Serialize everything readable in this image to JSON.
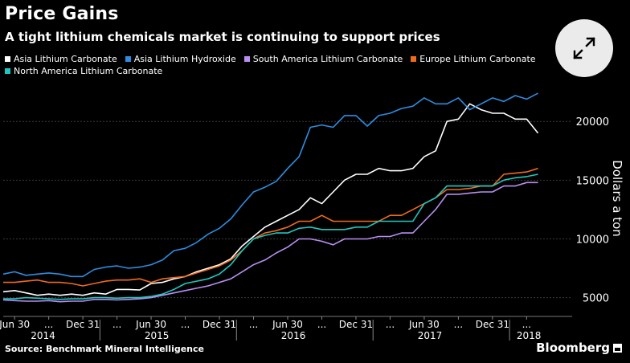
{
  "chart_data": {
    "type": "line",
    "title": "Price Gains",
    "subtitle": "A tight lithium chemicals market is continuing to support prices",
    "ylabel": "Dollars a ton",
    "ylim": [
      3400,
      23500
    ],
    "yticks": [
      5000,
      10000,
      15000,
      20000
    ],
    "ytick_labels": [
      "5000",
      "10000",
      "15000",
      "20000"
    ],
    "x": [
      0,
      1,
      2,
      3,
      4,
      5,
      6,
      7,
      8,
      9,
      10,
      11,
      12,
      13,
      14,
      15,
      16,
      17,
      18,
      19,
      20,
      21,
      22,
      23,
      24,
      25,
      26,
      27,
      28,
      29,
      30,
      31,
      32,
      33,
      34,
      35,
      36,
      37,
      38,
      39,
      40,
      41,
      42,
      43,
      44,
      45,
      46,
      47
    ],
    "xlim": [
      0,
      50
    ],
    "xtick_labels": [
      {
        "x": 1,
        "label": "Jun 30"
      },
      {
        "x": 4,
        "label": "..."
      },
      {
        "x": 7,
        "label": "Dec 31"
      },
      {
        "x": 10,
        "label": "..."
      },
      {
        "x": 13,
        "label": "Jun 30"
      },
      {
        "x": 16,
        "label": "..."
      },
      {
        "x": 19,
        "label": "Dec 31"
      },
      {
        "x": 22,
        "label": "..."
      },
      {
        "x": 25,
        "label": "Jun 30"
      },
      {
        "x": 28,
        "label": "..."
      },
      {
        "x": 31,
        "label": "Dec 31"
      },
      {
        "x": 34,
        "label": "..."
      },
      {
        "x": 37,
        "label": "Jun 30"
      },
      {
        "x": 40,
        "label": "..."
      },
      {
        "x": 43,
        "label": "Dec 31"
      },
      {
        "x": 46,
        "label": "..."
      }
    ],
    "years": [
      {
        "x": 3.5,
        "label": "2014"
      },
      {
        "x": 13.5,
        "label": "2015"
      },
      {
        "x": 25.5,
        "label": "2016"
      },
      {
        "x": 37.5,
        "label": "2017"
      },
      {
        "x": 46.2,
        "label": "2018"
      }
    ],
    "year_dividers": [
      8.5,
      20.5,
      32.5,
      44.5
    ],
    "series": [
      {
        "name": "Asia Lithium Carbonate",
        "color": "#ffffff",
        "values": [
          5500,
          5600,
          5400,
          5200,
          5300,
          5200,
          5300,
          5200,
          5400,
          5300,
          5700,
          5700,
          5650,
          6200,
          6300,
          6600,
          6800,
          7200,
          7500,
          7800,
          8300,
          9400,
          10200,
          11000,
          11500,
          12000,
          12500,
          13500,
          13000,
          14000,
          15000,
          15500,
          15500,
          16000,
          15800,
          15800,
          16000,
          17000,
          17500,
          20000,
          20200,
          21500,
          21000,
          20700,
          20700,
          20200,
          20200,
          19000
        ]
      },
      {
        "name": "Asia Lithium Hydroxide",
        "color": "#2e8de0",
        "values": [
          7000,
          7200,
          6900,
          7000,
          7100,
          7000,
          6800,
          6800,
          7400,
          7600,
          7700,
          7500,
          7600,
          7800,
          8200,
          9000,
          9200,
          9700,
          10400,
          10900,
          11700,
          12900,
          14000,
          14400,
          14900,
          16000,
          17000,
          19500,
          19700,
          19500,
          20500,
          20500,
          19600,
          20500,
          20700,
          21100,
          21300,
          22000,
          21500,
          21500,
          22000,
          21000,
          21500,
          22000,
          21700,
          22200,
          21900,
          22400
        ]
      },
      {
        "name": "South America Lithium Carbonate",
        "color": "#b88ef0",
        "values": [
          4800,
          4750,
          4700,
          4700,
          4750,
          4650,
          4700,
          4700,
          4850,
          4850,
          4800,
          4850,
          4900,
          5000,
          5200,
          5400,
          5600,
          5800,
          6000,
          6300,
          6600,
          7200,
          7800,
          8200,
          8800,
          9300,
          10000,
          10000,
          9800,
          9500,
          10000,
          10000,
          10000,
          10200,
          10200,
          10500,
          10500,
          11500,
          12500,
          13800,
          13800,
          13900,
          14000,
          14000,
          14500,
          14500,
          14800,
          14800
        ]
      },
      {
        "name": "Europe Lithium Carbonate",
        "color": "#f06a1e",
        "values": [
          6300,
          6300,
          6400,
          6500,
          6300,
          6300,
          6200,
          6000,
          6200,
          6400,
          6500,
          6500,
          6600,
          6300,
          6600,
          6700,
          6800,
          7100,
          7400,
          7700,
          8200,
          9000,
          10000,
          10500,
          10700,
          11000,
          11500,
          11500,
          12000,
          11500,
          11500,
          11500,
          11500,
          11500,
          12000,
          12000,
          12500,
          13000,
          13500,
          14200,
          14200,
          14300,
          14500,
          14500,
          15500,
          15600,
          15700,
          16000
        ]
      },
      {
        "name": "North America Lithium Carbonate",
        "color": "#1ec8c0",
        "values": [
          4900,
          4900,
          5000,
          4950,
          4900,
          4850,
          4900,
          4900,
          5000,
          5000,
          4950,
          5000,
          5000,
          5100,
          5300,
          5700,
          6200,
          6400,
          6600,
          7000,
          7800,
          9000,
          10000,
          10300,
          10500,
          10500,
          10900,
          11000,
          10800,
          10800,
          10800,
          11000,
          11000,
          11500,
          11500,
          11500,
          11500,
          13000,
          13500,
          14500,
          14500,
          14500,
          14500,
          14500,
          15000,
          15200,
          15300,
          15500
        ]
      }
    ]
  },
  "expand_button": {
    "icon": "expand-icon"
  },
  "source": "Source: Benchmark Mineral Intelligence",
  "brand": "Bloomberg"
}
